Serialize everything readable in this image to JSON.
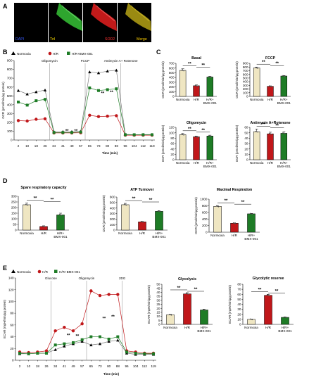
{
  "panel_labels": [
    "A",
    "B",
    "C",
    "D",
    "E"
  ],
  "microscopy": {
    "tiles": [
      {
        "label": "DAPI",
        "label_color": "#3a5cff",
        "tint": "#0a0a1e"
      },
      {
        "label": "TnI",
        "label_color": "#ffe000",
        "tint": "#1f8f1f"
      },
      {
        "label": "SOD2",
        "label_color": "#ff3030",
        "tint": "#b01818"
      },
      {
        "label": "Merge",
        "label_color": "#ffd000",
        "tint": "#8a8a16"
      }
    ]
  },
  "legend": {
    "normoxia": "Normoxia",
    "hr": "H/R",
    "hr_bmx": "H/R+BMX-001",
    "hr_bmx_alt": "H/R+ BMX-001"
  },
  "colors": {
    "normoxia": "#efe6c2",
    "hr": "#c0171a",
    "hr_bmx": "#1e7c26",
    "line_normoxia": "#7a7a7a",
    "black": "#000000"
  },
  "significance": "**",
  "chart_data": [
    {
      "id": "B",
      "type": "line",
      "title": "",
      "xlabel": "Time (min)",
      "ylabel": "OCR (pmol/min/µg protein)",
      "x": [
        2,
        10,
        18,
        26,
        34,
        41,
        49,
        57,
        65,
        73,
        80,
        88,
        96,
        104,
        112,
        119
      ],
      "ylim": [
        0,
        900
      ],
      "yticks": [
        0,
        100,
        200,
        300,
        400,
        500,
        600,
        700,
        800,
        900
      ],
      "annotations": [
        {
          "x": 30,
          "text": "Oligomycin"
        },
        {
          "x": 61,
          "text": "FCCP"
        },
        {
          "x": 92,
          "text": "Antimycin A+ Rotenone"
        }
      ],
      "series": [
        {
          "name": "Normoxia",
          "values": [
            560,
            520,
            545,
            565,
            95,
            95,
            95,
            98,
            770,
            760,
            780,
            790,
            65,
            60,
            62,
            62
          ]
        },
        {
          "name": "H/R",
          "values": [
            220,
            215,
            235,
            240,
            80,
            80,
            80,
            82,
            280,
            265,
            270,
            275,
            55,
            55,
            55,
            55
          ]
        },
        {
          "name": "H/R+BMX-001",
          "values": [
            430,
            395,
            445,
            460,
            85,
            85,
            85,
            90,
            590,
            560,
            570,
            580,
            60,
            60,
            60,
            60
          ]
        }
      ]
    },
    {
      "id": "C-basal",
      "type": "bar",
      "title": "Basal",
      "ylabel": "OCR (pmol/min/µg protein)",
      "categories": [
        "Normoxia",
        "H/R",
        "H/R+ BMX-001"
      ],
      "values": [
        550,
        225,
        410
      ],
      "errors": [
        35,
        18,
        18
      ],
      "ylim": [
        0,
        700
      ],
      "yticks": [
        0,
        100,
        200,
        300,
        400,
        500,
        600,
        700
      ]
    },
    {
      "id": "C-fccp",
      "type": "bar",
      "title": "FCCP",
      "ylabel": "OCR (pmol/min/µg protein)",
      "categories": [
        "Normoxia",
        "H/R",
        "H/R+ BMX-001"
      ],
      "values": [
        775,
        275,
        555
      ],
      "errors": [
        25,
        12,
        14
      ],
      "ylim": [
        0,
        900
      ],
      "yticks": [
        0,
        100,
        200,
        300,
        400,
        500,
        600,
        700,
        800,
        900
      ]
    },
    {
      "id": "C-oligo",
      "type": "bar",
      "title": "Oligomycin",
      "ylabel": "OCR (pmol/min/µg protein)",
      "categories": [
        "Normoxia",
        "H/R",
        "H/R+ BMX-001"
      ],
      "values": [
        93,
        85,
        88
      ],
      "errors": [
        4,
        3,
        3
      ],
      "ylim": [
        0,
        120
      ],
      "yticks": [
        0,
        20,
        40,
        60,
        80,
        100,
        120
      ]
    },
    {
      "id": "C-anti",
      "type": "bar",
      "title": "Antimycin A+Rotenone",
      "ylabel": "OCR (pmol/min/µg protein)",
      "categories": [
        "Normoxia",
        "H/R",
        "H/R+ BMX-001"
      ],
      "values": [
        52,
        48,
        49
      ],
      "errors": [
        5,
        3,
        3
      ],
      "ylim": [
        0,
        60
      ],
      "yticks": [
        0,
        10,
        20,
        30,
        40,
        50,
        60
      ]
    },
    {
      "id": "D-spare",
      "type": "bar",
      "title": "Spare respiratory capacity",
      "ylabel": "",
      "categories": [
        "Normoxia",
        "H/R",
        "H/R+ BMX-001"
      ],
      "values": [
        225,
        32,
        135
      ],
      "errors": [
        15,
        6,
        15
      ],
      "ylim": [
        0,
        300
      ],
      "yticks": [
        0,
        50,
        100,
        150,
        200,
        250,
        300
      ]
    },
    {
      "id": "D-atp",
      "type": "bar",
      "title": "ATP Turnover",
      "ylabel": "OCR (pmol/min/µg protein)",
      "categories": [
        "Normoxia",
        "H/R",
        "H/R+ BMX-001"
      ],
      "values": [
        460,
        150,
        340
      ],
      "errors": [
        25,
        8,
        14
      ],
      "ylim": [
        0,
        600
      ],
      "yticks": [
        0,
        100,
        200,
        300,
        400,
        500,
        600
      ]
    },
    {
      "id": "D-max",
      "type": "bar",
      "title": "Maximal Respiration",
      "ylabel": "OCR (pmol/min/µg protein)",
      "categories": [
        "Normoxia",
        "H/R",
        "H/R+ BMX-001"
      ],
      "values": [
        780,
        270,
        555
      ],
      "errors": [
        25,
        12,
        14
      ],
      "ylim": [
        0,
        1000
      ],
      "yticks": [
        0,
        200,
        400,
        600,
        800,
        1000
      ]
    },
    {
      "id": "E",
      "type": "line",
      "title": "",
      "xlabel": "Time (min)",
      "ylabel": "ECAR (mpH/min/µg protein)",
      "x": [
        2,
        10,
        18,
        26,
        34,
        41,
        49,
        57,
        65,
        73,
        80,
        88,
        96,
        104,
        112,
        119
      ],
      "ylim": [
        0,
        140
      ],
      "yticks": [
        0,
        20,
        40,
        60,
        80,
        100,
        120,
        140
      ],
      "annotations": [
        {
          "x": 30,
          "text": "Glucose"
        },
        {
          "x": 61,
          "text": "Oligomycin"
        },
        {
          "x": 92,
          "text": "2DG"
        }
      ],
      "series": [
        {
          "name": "Normoxia",
          "values": [
            11,
            11,
            12,
            12,
            18,
            24,
            28,
            32,
            26,
            28,
            32,
            34,
            12,
            10,
            10,
            10
          ]
        },
        {
          "name": "H/R",
          "values": [
            14,
            13,
            14,
            16,
            50,
            56,
            50,
            62,
            118,
            110,
            112,
            112,
            16,
            14,
            12,
            12
          ]
        },
        {
          "name": "H/R+BMX-001",
          "values": [
            12,
            11,
            12,
            12,
            26,
            28,
            30,
            35,
            40,
            40,
            36,
            40,
            14,
            12,
            11,
            11
          ]
        }
      ]
    },
    {
      "id": "E-glyco",
      "type": "bar",
      "title": "Glycolysis",
      "ylabel": "ECAR (mpH/min/µg protein)",
      "categories": [
        "Normoxia",
        "H/R",
        "H/R+ BMX-001"
      ],
      "values": [
        12,
        38,
        18
      ],
      "errors": [
        0.5,
        1.5,
        1.0
      ],
      "ylim": [
        0,
        50
      ],
      "yticks": [
        0,
        5,
        10,
        15,
        20,
        25,
        30,
        35,
        40,
        45,
        50
      ]
    },
    {
      "id": "E-reserve",
      "type": "bar",
      "title": "Glycolytic reserve",
      "ylabel": "ECAR (mpH/min/µg protein)",
      "categories": [
        "Normoxia",
        "H/R",
        "H/R+ BMX-001"
      ],
      "values": [
        10,
        58,
        14
      ],
      "errors": [
        0.5,
        2,
        1
      ],
      "ylim": [
        0,
        80
      ],
      "yticks": [
        0,
        10,
        20,
        30,
        40,
        50,
        60,
        70,
        80
      ]
    }
  ]
}
